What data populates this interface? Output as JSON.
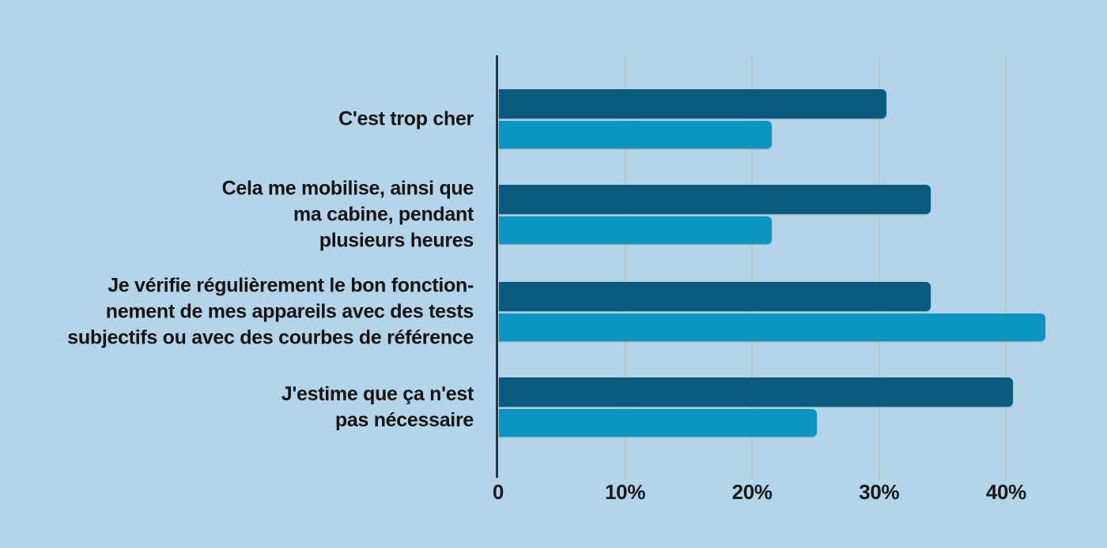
{
  "page": {
    "background_color": "#b3d4e9"
  },
  "chart_data": {
    "type": "bar",
    "orientation": "horizontal",
    "title": "",
    "xlabel": "",
    "ylabel": "",
    "categories": [
      {
        "label": "C'est trop cher"
      },
      {
        "label": "Cela me mobilise, ainsi que\nma cabine, pendant\nplusieurs heures"
      },
      {
        "label": "Je vérifie régulièrement le bon fonction-\nnement de mes appareils avec des tests\nsubjectifs ou avec des courbes de référence"
      },
      {
        "label": "J'estime que ça n'est\npas nécessaire"
      }
    ],
    "series": [
      {
        "name": "serie-fonce",
        "color": "#0a5a80",
        "values": [
          30.5,
          34,
          34,
          40.5
        ]
      },
      {
        "name": "serie-clair",
        "color": "#0996bf",
        "values": [
          21.5,
          21.5,
          43,
          25
        ]
      }
    ],
    "x_axis": {
      "tick_labels": [
        "0",
        "10%",
        "20%",
        "30%",
        "40%"
      ],
      "tick_values": [
        0,
        10,
        20,
        30,
        40
      ],
      "range": [
        0,
        47
      ],
      "unit": "%"
    },
    "grid": true,
    "legend_position": "none",
    "colors": {
      "axis": "#2d3640",
      "gridline": "#c2c4c4",
      "text": "#1a1a1a",
      "background": "#b3d4e9"
    }
  }
}
